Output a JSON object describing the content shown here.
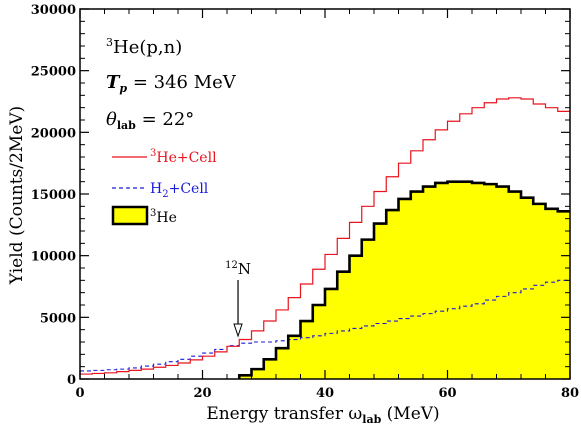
{
  "chart_data": {
    "type": "line",
    "xlabel": "Energy transfer ω_lab (MeV)",
    "xlabel_parts": {
      "main": "Energy transfer ω",
      "sub": "lab",
      "unit": " (MeV)"
    },
    "ylabel": "Yield (Counts/2MeV)",
    "xlim": [
      0,
      80
    ],
    "ylim": [
      0,
      30000
    ],
    "xticks": [
      0,
      20,
      40,
      60,
      80
    ],
    "yticks": [
      0,
      5000,
      10000,
      15000,
      20000,
      25000,
      30000
    ],
    "ytick_labels": [
      "0",
      "5000",
      "10000",
      "15000",
      "20000",
      "25000",
      "30000"
    ],
    "xtick_labels": [
      "0",
      "20",
      "40",
      "60",
      "80"
    ],
    "grid": false,
    "legend_position": "top-left",
    "annotations": {
      "reaction": {
        "sup": "3",
        "text": "He(p,n)"
      },
      "energy": {
        "text": "T",
        "sub": "p",
        "value": " = 346 MeV"
      },
      "angle": {
        "text": "θ",
        "sub": "lab",
        "value": " = 22°"
      },
      "marker": {
        "sup": "12",
        "text": "N",
        "x": 25.8
      }
    },
    "x_edges": [
      0,
      2,
      4,
      6,
      8,
      10,
      12,
      14,
      16,
      18,
      20,
      22,
      24,
      26,
      28,
      30,
      32,
      34,
      36,
      38,
      40,
      42,
      44,
      46,
      48,
      50,
      52,
      54,
      56,
      58,
      60,
      62,
      64,
      66,
      68,
      70,
      72,
      74,
      76,
      78,
      80
    ],
    "series": [
      {
        "name": "3He+Cell",
        "legend_sup": "3",
        "legend_text": "He+Cell",
        "color": "#e8141e",
        "style": "solid-step",
        "values": [
          400,
          450,
          500,
          600,
          700,
          800,
          950,
          1100,
          1300,
          1550,
          1850,
          2200,
          2650,
          3200,
          3900,
          4700,
          5600,
          6600,
          7700,
          8900,
          10100,
          11400,
          12700,
          14000,
          15200,
          16400,
          17500,
          18500,
          19400,
          20200,
          20900,
          21500,
          22000,
          22400,
          22700,
          22800,
          22700,
          22300,
          22000,
          21700
        ]
      },
      {
        "name": "H2+Cell",
        "legend_text": "H",
        "legend_sub": "2",
        "legend_text2": "+Cell",
        "color": "#1a1adb",
        "style": "dashed-step",
        "values": [
          650,
          700,
          750,
          800,
          900,
          1050,
          1200,
          1400,
          1600,
          1850,
          2100,
          2400,
          2700,
          2900,
          3000,
          3000,
          3100,
          3200,
          3350,
          3500,
          3700,
          3900,
          4100,
          4300,
          4500,
          4700,
          4900,
          5100,
          5300,
          5500,
          5700,
          5900,
          6100,
          6400,
          6700,
          7000,
          7300,
          7600,
          7850,
          8000
        ]
      },
      {
        "name": "3He",
        "legend_sup": "3",
        "legend_text": "He",
        "color": "#000000",
        "fill": "#ffff00",
        "style": "filled-step",
        "values": [
          0,
          0,
          0,
          0,
          0,
          0,
          0,
          0,
          0,
          0,
          0,
          0,
          0,
          300,
          800,
          1600,
          2500,
          3500,
          4700,
          6000,
          7300,
          8700,
          10000,
          11300,
          12600,
          13700,
          14600,
          15200,
          15600,
          15900,
          16000,
          16000,
          15900,
          15800,
          15600,
          15200,
          14700,
          14200,
          13800,
          13600
        ]
      }
    ]
  }
}
